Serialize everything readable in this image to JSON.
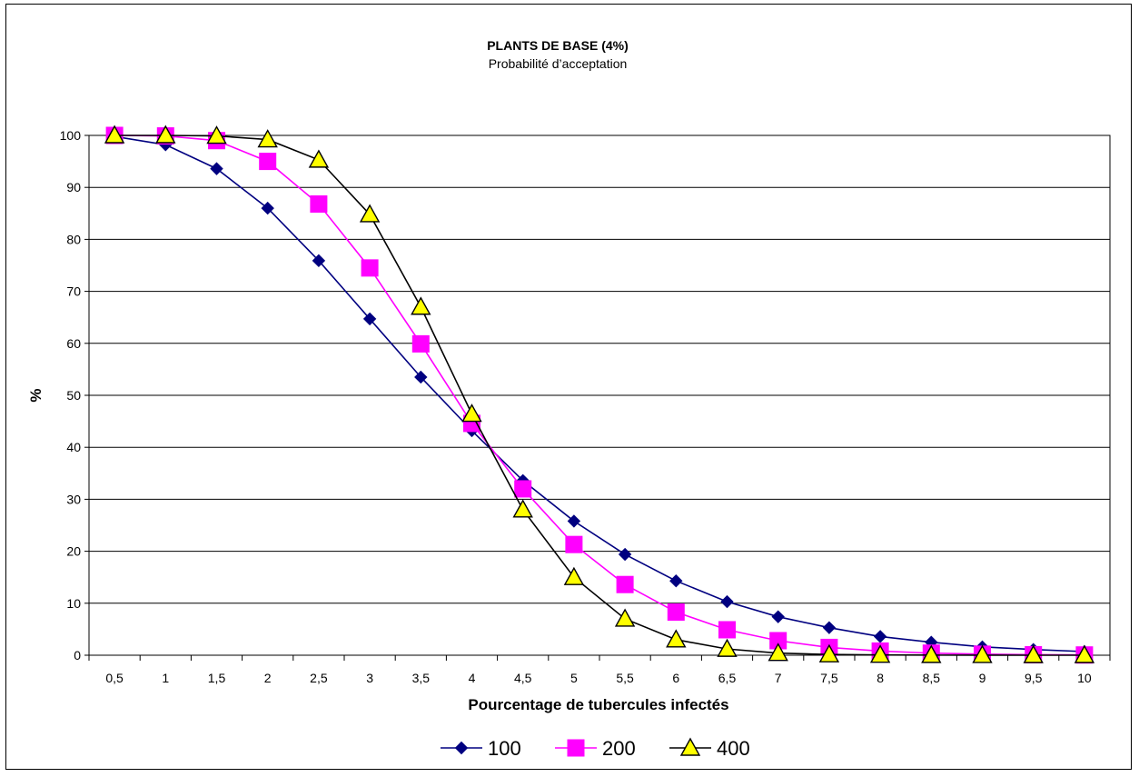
{
  "chart_data": {
    "type": "line",
    "title": "PLANTS DE BASE (4%)",
    "subtitle": "Probabilité d’acceptation",
    "xlabel": "Pourcentage de tubercules infectés",
    "ylabel": "%",
    "categories": [
      "0,5",
      "1",
      "1,5",
      "2",
      "2,5",
      "3",
      "3,5",
      "4",
      "4,5",
      "5",
      "5,5",
      "6",
      "6,5",
      "7",
      "7,5",
      "8",
      "8,5",
      "9",
      "9,5",
      "10"
    ],
    "ylim": [
      0,
      100
    ],
    "yticks": [
      "0",
      "10",
      "20",
      "30",
      "40",
      "50",
      "60",
      "70",
      "80",
      "90",
      "100"
    ],
    "grid": true,
    "legend_position": "bottom",
    "series": [
      {
        "name": "100",
        "color": "#000080",
        "marker": "diamond",
        "values": [
          99.8,
          98.2,
          93.6,
          86.0,
          75.9,
          64.7,
          53.5,
          43.2,
          33.6,
          25.8,
          19.4,
          14.3,
          10.3,
          7.4,
          5.3,
          3.6,
          2.5,
          1.6,
          1.1,
          0.7
        ]
      },
      {
        "name": "200",
        "color": "#FF00FF",
        "marker": "square",
        "values": [
          100,
          99.9,
          99.0,
          95.0,
          86.8,
          74.5,
          59.9,
          44.6,
          32.0,
          21.3,
          13.6,
          8.3,
          4.9,
          2.8,
          1.5,
          0.8,
          0.4,
          0.2,
          0.1,
          0.05
        ]
      },
      {
        "name": "400",
        "color": "#000000",
        "fill": "#FFFF00",
        "marker": "triangle",
        "values": [
          100,
          100,
          99.9,
          99.2,
          95.3,
          84.8,
          67.0,
          46.4,
          28.0,
          15.0,
          7.0,
          3.0,
          1.2,
          0.4,
          0.15,
          0.05,
          0.02,
          0.01,
          0.0,
          0.0
        ]
      }
    ]
  }
}
